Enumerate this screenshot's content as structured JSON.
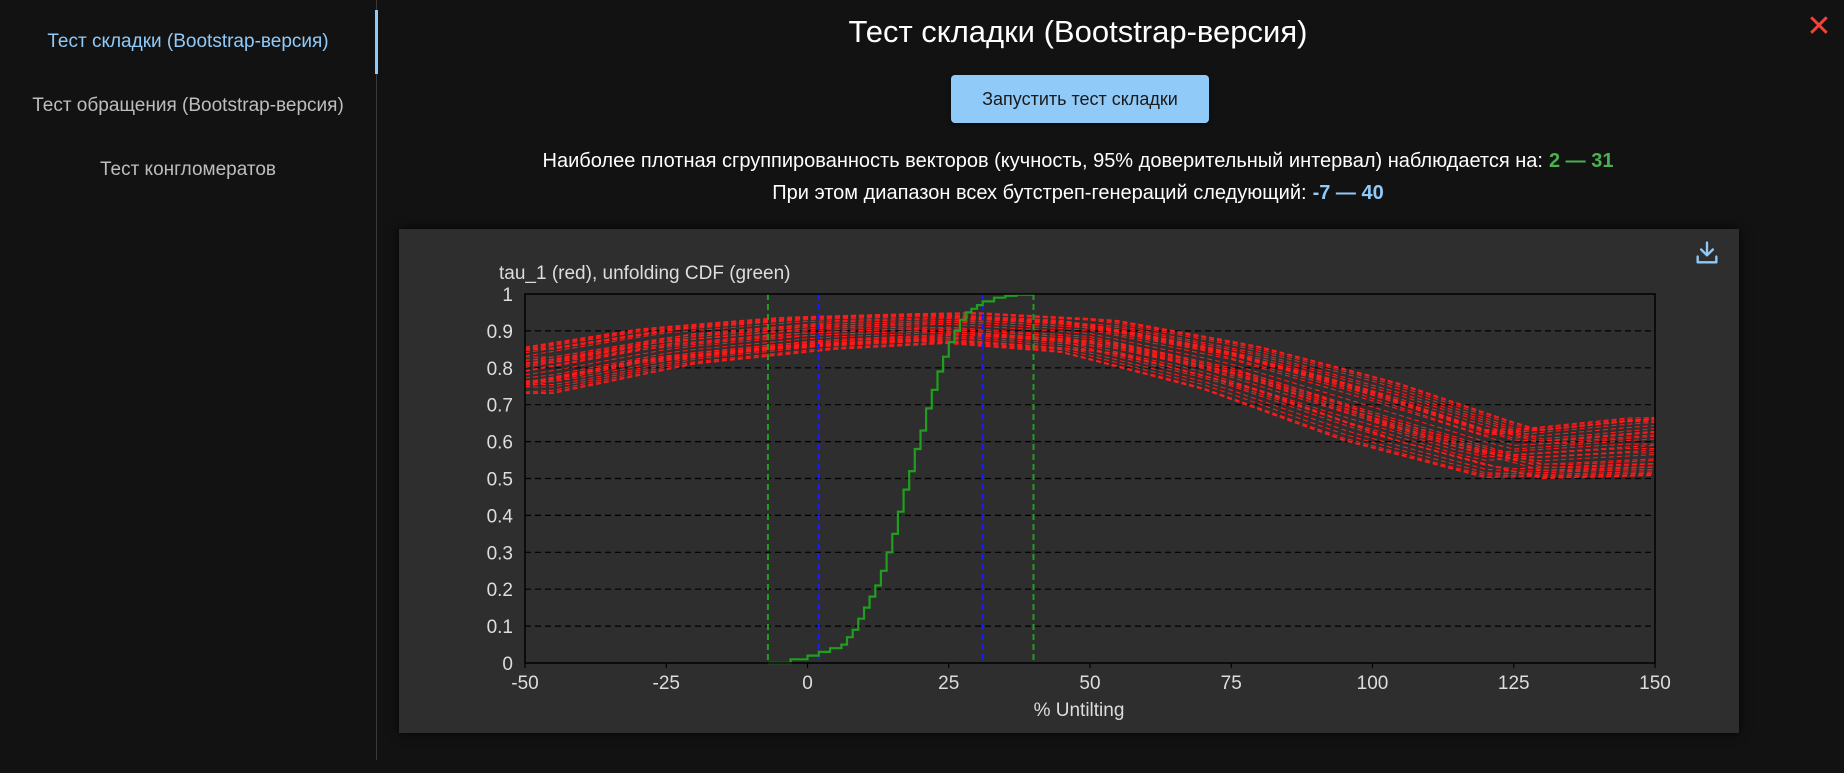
{
  "sidebar": {
    "items": [
      {
        "label": "Тест складки (Bootstrap-версия)",
        "active": true
      },
      {
        "label": "Тест обращения (Bootstrap-версия)",
        "active": false
      },
      {
        "label": "Тест конгломератов",
        "active": false
      }
    ]
  },
  "main": {
    "title": "Тест складки (Bootstrap-версия)",
    "run_button_label": "Запустить тест складки",
    "close_icon": "close-icon",
    "result_line1": {
      "text": "Наиболее плотная сгруппированность векторов (кучность, 95% доверительный интервал) наблюдается на:",
      "value": "2 — 31"
    },
    "result_line2": {
      "text": "При этом диапазон всех бутстреп-генераций следующий:",
      "value": "-7 — 40"
    },
    "download_icon": "download-icon"
  },
  "colors": {
    "accent": "#90caf9",
    "green_value": "#4caf50",
    "close": "#f44336",
    "tau_curves": "#ff1a1a",
    "cdf": "#1f9e1f",
    "ci_lines": "#1a1aff",
    "range_lines": "#1f9e1f"
  },
  "chart_data": {
    "type": "line",
    "title": "tau_1 (red), unfolding CDF (green)",
    "xlabel": "% Untilting",
    "ylabel": "",
    "xlim": [
      -50,
      150
    ],
    "ylim": [
      0,
      1
    ],
    "x_ticks": [
      -50,
      -25,
      0,
      25,
      50,
      75,
      100,
      125,
      150
    ],
    "y_ticks": [
      0,
      0.1,
      0.2,
      0.3,
      0.4,
      0.5,
      0.6,
      0.7,
      0.8,
      0.9,
      1
    ],
    "grid": "horizontal dashed",
    "legend": "none",
    "vertical_lines": [
      {
        "x": -7,
        "color": "green",
        "style": "dashed"
      },
      {
        "x": 2,
        "color": "blue",
        "style": "dashed"
      },
      {
        "x": 31,
        "color": "blue",
        "style": "dashed"
      },
      {
        "x": 40,
        "color": "green",
        "style": "dashed"
      }
    ],
    "tau_curves": {
      "style": "dashed",
      "color": "red",
      "count": 35,
      "representative_points": [
        {
          "x": -50,
          "y": 0.79
        },
        {
          "x": -25,
          "y": 0.86
        },
        {
          "x": 0,
          "y": 0.9
        },
        {
          "x": 25,
          "y": 0.91
        },
        {
          "x": 50,
          "y": 0.88
        },
        {
          "x": 75,
          "y": 0.8
        },
        {
          "x": 100,
          "y": 0.7
        },
        {
          "x": 125,
          "y": 0.58
        },
        {
          "x": 150,
          "y": 0.57
        }
      ],
      "envelope_low": [
        0.73,
        0.81,
        0.85,
        0.87,
        0.84,
        0.74,
        0.6,
        0.5,
        0.51
      ],
      "envelope_high": [
        0.85,
        0.91,
        0.94,
        0.95,
        0.93,
        0.86,
        0.76,
        0.63,
        0.67
      ]
    },
    "cdf": {
      "style": "solid step",
      "color": "green",
      "x": [
        -7,
        -3,
        0,
        2,
        4,
        6,
        7,
        8,
        9,
        10,
        11,
        12,
        13,
        14,
        15,
        16,
        17,
        18,
        19,
        20,
        21,
        22,
        23,
        24,
        25,
        26,
        27,
        28,
        29,
        30,
        31,
        33,
        35,
        37,
        40
      ],
      "y": [
        0,
        0.01,
        0.02,
        0.03,
        0.04,
        0.05,
        0.07,
        0.09,
        0.12,
        0.15,
        0.18,
        0.21,
        0.25,
        0.3,
        0.35,
        0.41,
        0.47,
        0.52,
        0.58,
        0.63,
        0.69,
        0.74,
        0.79,
        0.83,
        0.87,
        0.9,
        0.93,
        0.95,
        0.96,
        0.97,
        0.98,
        0.99,
        0.995,
        0.998,
        1
      ]
    }
  }
}
